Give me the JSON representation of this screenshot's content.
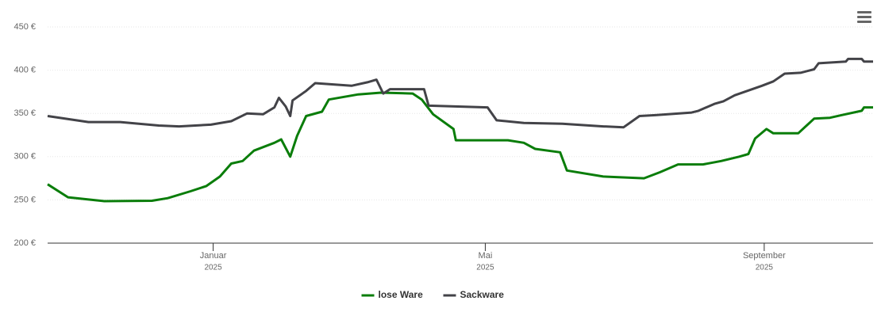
{
  "chart_data": {
    "type": "line",
    "xlim": [
      "2024-10-20",
      "2025-10-19"
    ],
    "xticks": [
      {
        "value": "2025-01-01",
        "label": "Januar",
        "year_label": "2025"
      },
      {
        "value": "2025-05-01",
        "label": "Mai",
        "year_label": "2025"
      },
      {
        "value": "2025-09-01",
        "label": "September",
        "year_label": "2025"
      }
    ],
    "ylim": [
      200,
      450
    ],
    "yticks": [
      {
        "value": 200,
        "label": "200 €"
      },
      {
        "value": 250,
        "label": "250 €"
      },
      {
        "value": 300,
        "label": "300 €"
      },
      {
        "value": 350,
        "label": "350 €"
      },
      {
        "value": 400,
        "label": "400 €"
      },
      {
        "value": 450,
        "label": "450 €"
      }
    ],
    "grid": true,
    "legend": "bottom",
    "series": [
      {
        "name": "lose Ware",
        "color": "#0a7d0a",
        "x": [
          "2024-10-20",
          "2024-10-29",
          "2024-11-14",
          "2024-12-05",
          "2024-12-12",
          "2024-12-22",
          "2024-12-29",
          "2025-01-04",
          "2025-01-09",
          "2025-01-14",
          "2025-01-19",
          "2025-01-28",
          "2025-01-31",
          "2025-02-04",
          "2025-02-07",
          "2025-02-11",
          "2025-02-18",
          "2025-02-21",
          "2025-03-06",
          "2025-03-16",
          "2025-03-30",
          "2025-04-03",
          "2025-04-08",
          "2025-04-17",
          "2025-04-18",
          "2025-05-11",
          "2025-05-18",
          "2025-05-23",
          "2025-06-03",
          "2025-06-06",
          "2025-06-22",
          "2025-07-10",
          "2025-07-17",
          "2025-07-25",
          "2025-08-05",
          "2025-08-13",
          "2025-08-21",
          "2025-08-25",
          "2025-08-28",
          "2025-09-02",
          "2025-09-05",
          "2025-09-16",
          "2025-09-23",
          "2025-09-30",
          "2025-10-05",
          "2025-10-14",
          "2025-10-15",
          "2025-10-19"
        ],
        "values": [
          268,
          253,
          248.5,
          249,
          252,
          260,
          266,
          277,
          292,
          295,
          307,
          316,
          320,
          300,
          324,
          347,
          352,
          366,
          372,
          374,
          373,
          366,
          349,
          332,
          319,
          319,
          316,
          309,
          305,
          284,
          277,
          275,
          282,
          291,
          291,
          295,
          300,
          303,
          321,
          332,
          327,
          327,
          344,
          345,
          348,
          353,
          357,
          357
        ]
      },
      {
        "name": "Sackware",
        "color": "#434348",
        "x": [
          "2024-10-20",
          "2024-11-07",
          "2024-11-21",
          "2024-12-08",
          "2024-12-17",
          "2024-12-31",
          "2025-01-09",
          "2025-01-16",
          "2025-01-23",
          "2025-01-28",
          "2025-01-30",
          "2025-02-02",
          "2025-02-04",
          "2025-02-05",
          "2025-02-11",
          "2025-02-15",
          "2025-03-03",
          "2025-03-10",
          "2025-03-14",
          "2025-03-17",
          "2025-03-20",
          "2025-04-04",
          "2025-04-06",
          "2025-05-02",
          "2025-05-06",
          "2025-05-18",
          "2025-06-04",
          "2025-06-22",
          "2025-07-01",
          "2025-07-08",
          "2025-07-15",
          "2025-07-31",
          "2025-08-03",
          "2025-08-10",
          "2025-08-14",
          "2025-08-19",
          "2025-08-31",
          "2025-09-05",
          "2025-09-10",
          "2025-09-17",
          "2025-09-23",
          "2025-09-25",
          "2025-10-07",
          "2025-10-08",
          "2025-10-14",
          "2025-10-15",
          "2025-10-19"
        ],
        "values": [
          347,
          340,
          340,
          336,
          335,
          337,
          341,
          350,
          349,
          357,
          368,
          358,
          347,
          365,
          376,
          385,
          382,
          386,
          389,
          373,
          378,
          378,
          359,
          357,
          342,
          339,
          338,
          335,
          334,
          347,
          348,
          351,
          353,
          361,
          364,
          371,
          382,
          387,
          396,
          397,
          401,
          408,
          410,
          413,
          413,
          410,
          410
        ]
      }
    ]
  }
}
